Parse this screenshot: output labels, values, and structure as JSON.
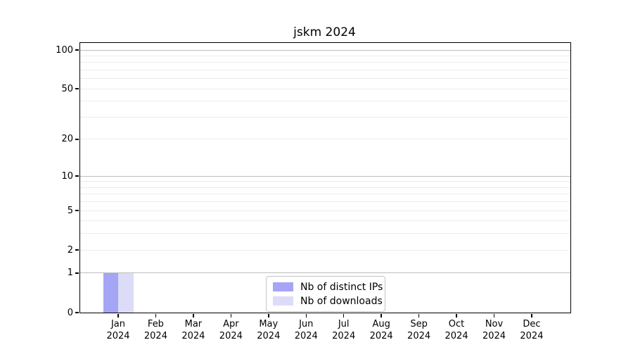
{
  "title": "jskm 2024",
  "colors": {
    "background": "#ffffff",
    "axis_frame": "#000000",
    "grid_major": "#bdbdbd",
    "grid_minor": "#ececec",
    "distinct_ips": "#a5a5f5",
    "downloads": "#dcdcf9",
    "legend_border": "#c4c4c4"
  },
  "legend": {
    "entries": [
      {
        "label": "Nb of distinct IPs",
        "color": "#a5a5f5"
      },
      {
        "label": "Nb of downloads",
        "color": "#dcdcf9"
      }
    ]
  },
  "chart_data": {
    "type": "bar",
    "title": "jskm 2024",
    "xlabel": "",
    "ylabel": "",
    "yscale": "log1p",
    "ylim": [
      0,
      115
    ],
    "grid": "horizontal",
    "legend_position": "lower center",
    "categories": [
      "Jan 2024",
      "Feb 2024",
      "Mar 2024",
      "Apr 2024",
      "May 2024",
      "Jun 2024",
      "Jul 2024",
      "Aug 2024",
      "Sep 2024",
      "Oct 2024",
      "Nov 2024",
      "Dec 2024"
    ],
    "x_tick_lines": [
      [
        "Jan",
        "2024"
      ],
      [
        "Feb",
        "2024"
      ],
      [
        "Mar",
        "2024"
      ],
      [
        "Apr",
        "2024"
      ],
      [
        "May",
        "2024"
      ],
      [
        "Jun",
        "2024"
      ],
      [
        "Jul",
        "2024"
      ],
      [
        "Aug",
        "2024"
      ],
      [
        "Sep",
        "2024"
      ],
      [
        "Oct",
        "2024"
      ],
      [
        "Nov",
        "2024"
      ],
      [
        "Dec",
        "2024"
      ]
    ],
    "y_ticks": [
      0,
      1,
      2,
      5,
      10,
      20,
      50,
      100
    ],
    "y_tick_labels": [
      "0",
      "1",
      "2",
      "5",
      "10",
      "20",
      "50",
      "100"
    ],
    "y_gridlines_major": [
      1,
      10,
      100
    ],
    "y_gridlines_minor": [
      2,
      3,
      4,
      5,
      6,
      7,
      8,
      9,
      20,
      30,
      40,
      50,
      60,
      70,
      80,
      90
    ],
    "series": [
      {
        "name": "Nb of distinct IPs",
        "color": "#a5a5f5",
        "values": [
          1,
          0,
          0,
          0,
          0,
          0,
          0,
          0,
          0,
          0,
          0,
          0
        ]
      },
      {
        "name": "Nb of downloads",
        "color": "#dcdcf9",
        "values": [
          1,
          0,
          0,
          0,
          0,
          0,
          0,
          0,
          0,
          0,
          0,
          0
        ]
      }
    ]
  }
}
